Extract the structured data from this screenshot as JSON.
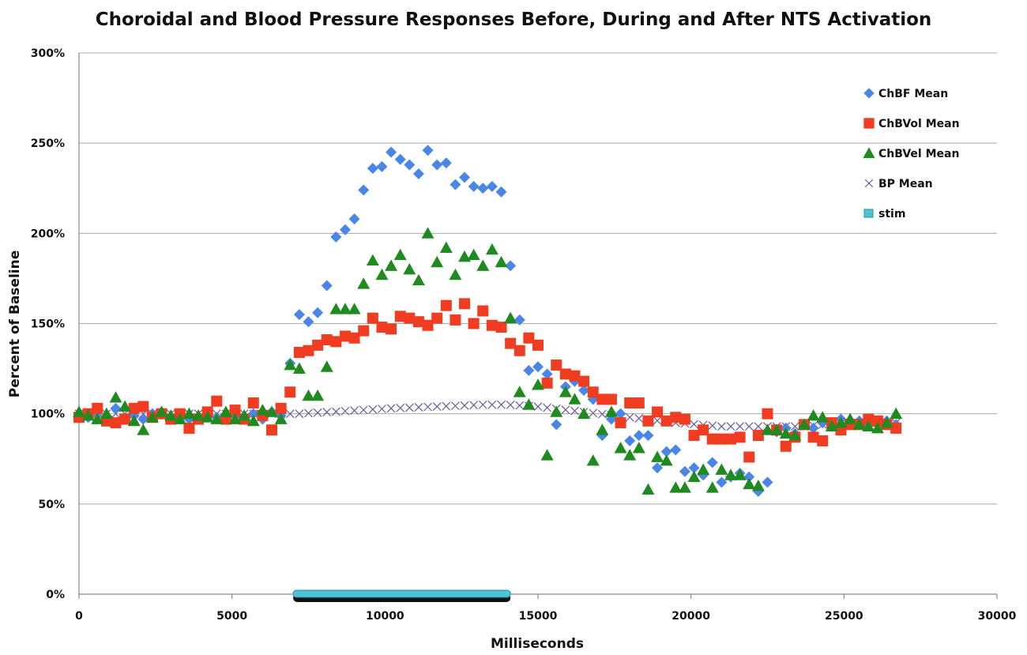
{
  "chart_data": {
    "type": "scatter",
    "title": "Choroidal and Blood Pressure Responses Before, During and After NTS Activation",
    "xlabel": "Milliseconds",
    "ylabel": "Percent of Baseline",
    "xlim": [
      0,
      30000
    ],
    "ylim": [
      0,
      300
    ],
    "xticks": [
      0,
      5000,
      10000,
      15000,
      20000,
      25000,
      30000
    ],
    "xtick_labels": [
      "0",
      "5000",
      "10000",
      "15000",
      "20000",
      "25000",
      "30000"
    ],
    "yticks": [
      0,
      50,
      100,
      150,
      200,
      250,
      300
    ],
    "ytick_labels": [
      "0%",
      "50%",
      "100%",
      "150%",
      "200%",
      "250%",
      "300%"
    ],
    "grid": true,
    "legend_position": "top-right",
    "series": [
      {
        "name": "BP Mean",
        "marker": "x",
        "color": "#6a5a9a",
        "x": [
          0,
          300,
          600,
          900,
          1200,
          1500,
          1800,
          2100,
          2400,
          2700,
          3000,
          3300,
          3600,
          3900,
          4200,
          4500,
          4800,
          5100,
          5400,
          5700,
          6000,
          6300,
          6600,
          6900,
          7200,
          7500,
          7800,
          8100,
          8400,
          8700,
          9000,
          9300,
          9600,
          9900,
          10200,
          10500,
          10800,
          11100,
          11400,
          11700,
          12000,
          12300,
          12600,
          12900,
          13200,
          13500,
          13800,
          14100,
          14400,
          14700,
          15000,
          15300,
          15600,
          15900,
          16200,
          16500,
          16800,
          17100,
          17400,
          17700,
          18000,
          18300,
          18600,
          18900,
          19200,
          19500,
          19800,
          20100,
          20400,
          20700,
          21000,
          21300,
          21600,
          21900,
          22200,
          22500,
          22800,
          23100,
          23400,
          23700,
          24000,
          24300,
          24600,
          24900,
          25200,
          25500,
          25800,
          26100,
          26400,
          26700
        ],
        "y": [
          100,
          100,
          100,
          100,
          100,
          100,
          100,
          100,
          100,
          100,
          100,
          100,
          100,
          100,
          100,
          100,
          100,
          100,
          100,
          100,
          100,
          100,
          100,
          100,
          100,
          100.3,
          100.6,
          100.9,
          101.2,
          101.5,
          101.8,
          102.1,
          102.4,
          102.7,
          103,
          103.2,
          103.4,
          103.6,
          103.8,
          104,
          104.2,
          104.4,
          104.6,
          104.8,
          105,
          105,
          105,
          104.9,
          104.6,
          104.3,
          104,
          103.4,
          102.8,
          102.2,
          101.6,
          101,
          100.4,
          99.8,
          99.2,
          98.6,
          98,
          97.4,
          96.8,
          96.2,
          95.6,
          95,
          94.6,
          94.2,
          93.8,
          93.4,
          93,
          93,
          93,
          93,
          93,
          93,
          93,
          93,
          93,
          93,
          93.5,
          94,
          94.5,
          95,
          95,
          95,
          95,
          95,
          95,
          95
        ]
      },
      {
        "name": "ChBF Mean",
        "marker": "diamond",
        "color": "#4a86e8",
        "x": [
          0,
          300,
          600,
          900,
          1200,
          1500,
          1800,
          2100,
          2400,
          2700,
          3000,
          3300,
          3600,
          3900,
          4200,
          4500,
          4800,
          5100,
          5400,
          5700,
          6000,
          6300,
          6600,
          6900,
          7200,
          7500,
          7800,
          8100,
          8400,
          8700,
          9000,
          9300,
          9600,
          9900,
          10200,
          10500,
          10800,
          11100,
          11400,
          11700,
          12000,
          12300,
          12600,
          12900,
          13200,
          13500,
          13800,
          14100,
          14400,
          14700,
          15000,
          15300,
          15600,
          15900,
          16200,
          16500,
          16800,
          17100,
          17400,
          17700,
          18000,
          18300,
          18600,
          18900,
          19200,
          19500,
          19800,
          20100,
          20400,
          20700,
          21000,
          21300,
          21600,
          21900,
          22200,
          22500,
          22800,
          23100,
          23400,
          23700,
          24000,
          24300,
          24600,
          24900,
          25200,
          25500,
          25800,
          26100,
          26400,
          26700
        ],
        "y": [
          99,
          98,
          100,
          97,
          103,
          97,
          99,
          97,
          100,
          101,
          98,
          99,
          97,
          98,
          100,
          98,
          97,
          99,
          98,
          100,
          97,
          101,
          99,
          128,
          155,
          151,
          156,
          171,
          198,
          202,
          208,
          224,
          236,
          237,
          245,
          241,
          238,
          233,
          246,
          238,
          239,
          227,
          231,
          226,
          225,
          226,
          223,
          182,
          152,
          124,
          126,
          122,
          94,
          115,
          118,
          113,
          108,
          88,
          97,
          100,
          85,
          88,
          88,
          70,
          79,
          80,
          68,
          70,
          66,
          73,
          62,
          65,
          67,
          65,
          57,
          62,
          90,
          92,
          89,
          94,
          92,
          95,
          94,
          97,
          95,
          96,
          94,
          95,
          96,
          94
        ]
      },
      {
        "name": "ChBVol Mean",
        "marker": "square",
        "color": "#f03c20",
        "x": [
          0,
          300,
          600,
          900,
          1200,
          1500,
          1800,
          2100,
          2400,
          2700,
          3000,
          3300,
          3600,
          3900,
          4200,
          4500,
          4800,
          5100,
          5400,
          5700,
          6000,
          6300,
          6600,
          6900,
          7200,
          7500,
          7800,
          8100,
          8400,
          8700,
          9000,
          9300,
          9600,
          9900,
          10200,
          10500,
          10800,
          11100,
          11400,
          11700,
          12000,
          12300,
          12600,
          12900,
          13200,
          13500,
          13800,
          14100,
          14400,
          14700,
          15000,
          15300,
          15600,
          15900,
          16200,
          16500,
          16800,
          17100,
          17400,
          17700,
          18000,
          18300,
          18600,
          18900,
          19200,
          19500,
          19800,
          20100,
          20400,
          20700,
          21000,
          21300,
          21600,
          21900,
          22200,
          22500,
          22800,
          23100,
          23400,
          23700,
          24000,
          24300,
          24600,
          24900,
          25200,
          25500,
          25800,
          26100,
          26400,
          26700
        ],
        "y": [
          98,
          100,
          103,
          96,
          95,
          97,
          103,
          104,
          98,
          100,
          97,
          100,
          92,
          97,
          101,
          107,
          97,
          102,
          97,
          106,
          99,
          91,
          103,
          112,
          134,
          135,
          138,
          141,
          140,
          143,
          142,
          146,
          153,
          148,
          147,
          154,
          153,
          151,
          149,
          153,
          160,
          152,
          161,
          150,
          157,
          149,
          148,
          139,
          135,
          142,
          138,
          117,
          127,
          122,
          121,
          118,
          112,
          108,
          108,
          95,
          106,
          106,
          96,
          101,
          96,
          98,
          97,
          88,
          91,
          86,
          86,
          86,
          87,
          76,
          88,
          100,
          91,
          82,
          87,
          94,
          87,
          85,
          95,
          91,
          94,
          94,
          97,
          96,
          94,
          92
        ]
      },
      {
        "name": "ChBVel Mean",
        "marker": "triangle",
        "color": "#1f8a1f",
        "x": [
          0,
          300,
          600,
          900,
          1200,
          1500,
          1800,
          2100,
          2400,
          2700,
          3000,
          3300,
          3600,
          3900,
          4200,
          4500,
          4800,
          5100,
          5400,
          5700,
          6000,
          6300,
          6600,
          6900,
          7200,
          7500,
          7800,
          8100,
          8400,
          8700,
          9000,
          9300,
          9600,
          9900,
          10200,
          10500,
          10800,
          11100,
          11400,
          11700,
          12000,
          12300,
          12600,
          12900,
          13200,
          13500,
          13800,
          14100,
          14400,
          14700,
          15000,
          15300,
          15600,
          15900,
          16200,
          16500,
          16800,
          17100,
          17400,
          17700,
          18000,
          18300,
          18600,
          18900,
          19200,
          19500,
          19800,
          20100,
          20400,
          20700,
          21000,
          21300,
          21600,
          21900,
          22200,
          22500,
          22800,
          23100,
          23400,
          23700,
          24000,
          24300,
          24600,
          24900,
          25200,
          25500,
          25800,
          26100,
          26400,
          26700
        ],
        "y": [
          101,
          99,
          97,
          100,
          109,
          104,
          96,
          91,
          98,
          101,
          99,
          97,
          100,
          99,
          98,
          97,
          101,
          97,
          99,
          96,
          102,
          101,
          97,
          127,
          125,
          110,
          110,
          126,
          158,
          158,
          158,
          172,
          185,
          177,
          182,
          188,
          180,
          174,
          200,
          184,
          192,
          177,
          187,
          188,
          182,
          191,
          184,
          153,
          112,
          105,
          116,
          77,
          101,
          112,
          108,
          100,
          74,
          91,
          101,
          81,
          77,
          81,
          58,
          76,
          74,
          59,
          59,
          65,
          69,
          59,
          69,
          66,
          66,
          61,
          60,
          91,
          91,
          89,
          88,
          94,
          99,
          98,
          93,
          95,
          97,
          94,
          93,
          92,
          95,
          100
        ]
      },
      {
        "name": "stim",
        "marker": "bar",
        "color": "#4fc3d6",
        "x_start": 7000,
        "x_end": 14100,
        "y": 0
      }
    ]
  }
}
